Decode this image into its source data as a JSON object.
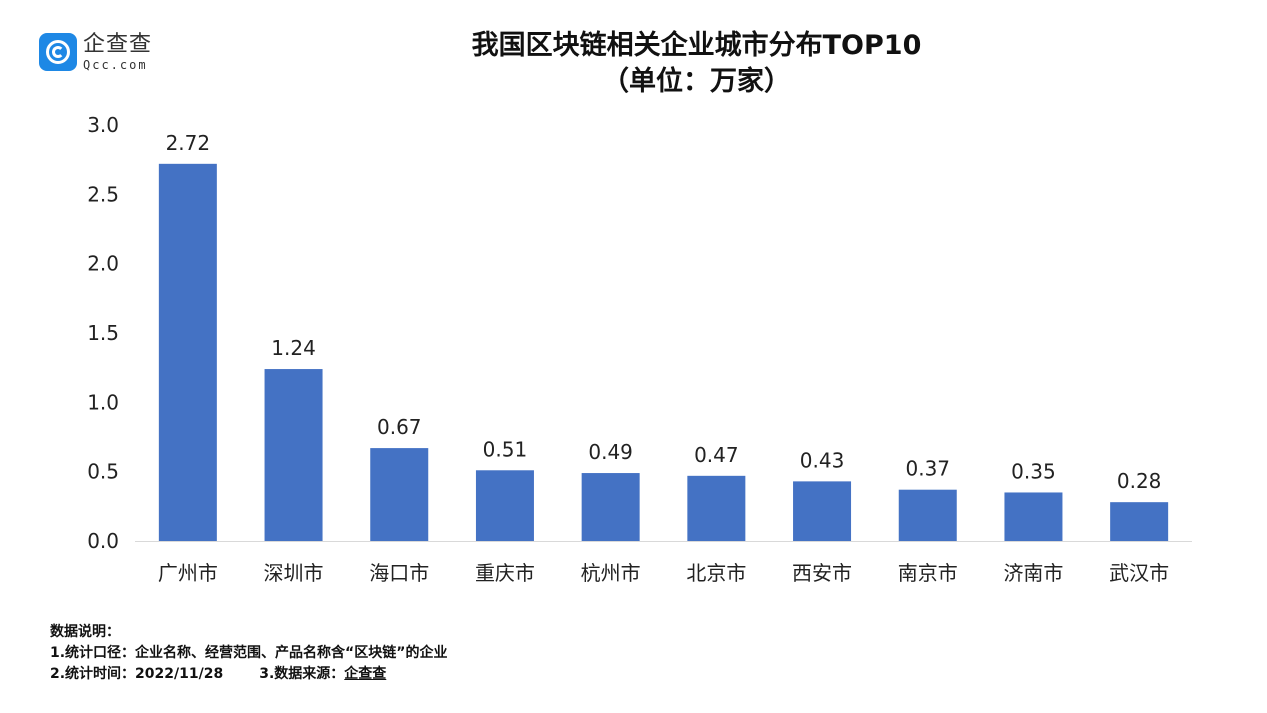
{
  "logo": {
    "name_cn": "企查查",
    "name_en": "Qcc.com"
  },
  "chart_data": {
    "type": "bar",
    "title": "我国区块链相关企业城市分布TOP10",
    "subtitle": "（单位：万家）",
    "categories": [
      "广州市",
      "深圳市",
      "海口市",
      "重庆市",
      "杭州市",
      "北京市",
      "西安市",
      "南京市",
      "济南市",
      "武汉市"
    ],
    "values": [
      2.72,
      1.24,
      0.67,
      0.51,
      0.49,
      0.47,
      0.43,
      0.37,
      0.35,
      0.28
    ],
    "data_labels": [
      "2.72",
      "1.24",
      "0.67",
      "0.51",
      "0.49",
      "0.47",
      "0.43",
      "0.37",
      "0.35",
      "0.28"
    ],
    "ylim": [
      0,
      3.0
    ],
    "yticks": [
      "0.0",
      "0.5",
      "1.0",
      "1.5",
      "2.0",
      "2.5",
      "3.0"
    ],
    "xlabel": "",
    "ylabel": "",
    "grid": false,
    "legend": "none",
    "bar_color": "#4472c4"
  },
  "notes": {
    "heading": "数据说明：",
    "line1": "1.统计口径：企业名称、经营范围、产品名称含“区块链”的企业",
    "line2a": "2.统计时间：2022/11/28",
    "line2b_label": "3.数据来源：",
    "line2b_source": "企查查"
  }
}
